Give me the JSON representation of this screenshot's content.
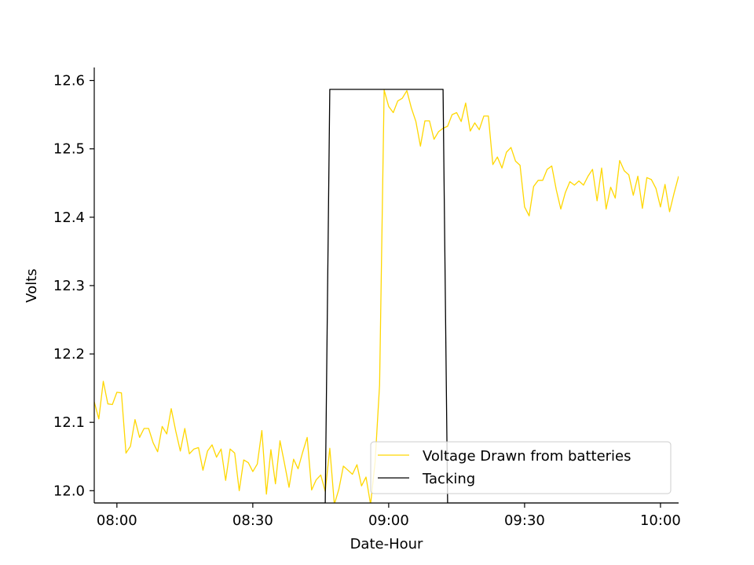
{
  "chart_data": {
    "type": "line",
    "title": "",
    "xlabel": "Date-Hour",
    "ylabel": "Volts",
    "xlim": [
      "07:55",
      "10:04"
    ],
    "ylim": [
      11.982,
      12.619
    ],
    "x_ticks": [
      "08:00",
      "08:30",
      "09:00",
      "09:30",
      "10:00"
    ],
    "y_ticks": [
      "12.0",
      "12.1",
      "12.2",
      "12.3",
      "12.4",
      "12.5",
      "12.6"
    ],
    "grid": false,
    "legend_position": "lower right",
    "series": [
      {
        "name": "Voltage Drawn from batteries",
        "color": "#ffd700",
        "x": [
          "07:55",
          "07:56",
          "07:57",
          "07:58",
          "07:59",
          "08:00",
          "08:01",
          "08:02",
          "08:03",
          "08:04",
          "08:05",
          "08:06",
          "08:07",
          "08:08",
          "08:09",
          "08:10",
          "08:11",
          "08:12",
          "08:13",
          "08:14",
          "08:15",
          "08:16",
          "08:17",
          "08:18",
          "08:19",
          "08:20",
          "08:21",
          "08:22",
          "08:23",
          "08:24",
          "08:25",
          "08:26",
          "08:27",
          "08:28",
          "08:29",
          "08:30",
          "08:31",
          "08:32",
          "08:33",
          "08:34",
          "08:35",
          "08:36",
          "08:37",
          "08:38",
          "08:39",
          "08:40",
          "08:41",
          "08:42",
          "08:43",
          "08:44",
          "08:45",
          "08:46",
          "08:47",
          "08:48",
          "08:49",
          "08:50",
          "08:51",
          "08:52",
          "08:53",
          "08:54",
          "08:55",
          "08:56",
          "08:57",
          "08:58",
          "08:59",
          "09:00",
          "09:01",
          "09:02",
          "09:03",
          "09:04",
          "09:05",
          "09:06",
          "09:07",
          "09:08",
          "09:09",
          "09:10",
          "09:11",
          "09:12",
          "09:13",
          "09:14",
          "09:15",
          "09:16",
          "09:17",
          "09:18",
          "09:19",
          "09:20",
          "09:21",
          "09:22",
          "09:23",
          "09:24",
          "09:25",
          "09:26",
          "09:27",
          "09:28",
          "09:29",
          "09:30",
          "09:31",
          "09:32",
          "09:33",
          "09:34",
          "09:35",
          "09:36",
          "09:37",
          "09:38",
          "09:39",
          "09:40",
          "09:41",
          "09:42",
          "09:43",
          "09:44",
          "09:45",
          "09:46",
          "09:47",
          "09:48",
          "09:49",
          "09:50",
          "09:51",
          "09:52",
          "09:53",
          "09:54",
          "09:55",
          "09:56",
          "09:57",
          "09:58",
          "09:59",
          "10:00",
          "10:01",
          "10:02",
          "10:03",
          "10:04"
        ],
        "y": [
          12.13,
          12.105,
          12.16,
          12.127,
          12.126,
          12.144,
          12.143,
          12.055,
          12.065,
          12.104,
          12.078,
          12.091,
          12.091,
          12.07,
          12.057,
          12.094,
          12.083,
          12.12,
          12.087,
          12.058,
          12.091,
          12.054,
          12.061,
          12.063,
          12.03,
          12.058,
          12.067,
          12.049,
          12.061,
          12.015,
          12.061,
          12.055,
          12.0,
          12.045,
          12.041,
          12.028,
          12.039,
          12.088,
          11.995,
          12.06,
          12.01,
          12.073,
          12.04,
          12.005,
          12.046,
          12.032,
          12.056,
          12.078,
          12.001,
          12.016,
          12.023,
          11.999,
          12.062,
          11.98,
          12.002,
          12.036,
          12.03,
          12.024,
          12.038,
          12.007,
          12.02,
          11.98,
          12.042,
          12.155,
          12.586,
          12.562,
          12.553,
          12.57,
          12.574,
          12.585,
          12.56,
          12.54,
          12.504,
          12.541,
          12.541,
          12.514,
          12.525,
          12.53,
          12.533,
          12.55,
          12.553,
          12.54,
          12.567,
          12.526,
          12.538,
          12.528,
          12.548,
          12.548,
          12.477,
          12.488,
          12.472,
          12.495,
          12.502,
          12.482,
          12.476,
          12.415,
          12.402,
          12.445,
          12.454,
          12.454,
          12.47,
          12.475,
          12.44,
          12.412,
          12.436,
          12.452,
          12.447,
          12.453,
          12.447,
          12.46,
          12.47,
          12.424,
          12.472,
          12.412,
          12.444,
          12.428,
          12.483,
          12.468,
          12.462,
          12.432,
          12.46,
          12.413,
          12.458,
          12.455,
          12.442,
          12.415,
          12.448,
          12.408,
          12.435,
          12.46
        ]
      },
      {
        "name": "Tacking",
        "color": "#000000",
        "x": [
          "07:55",
          "08:46",
          "08:47",
          "09:12",
          "09:13",
          "10:04"
        ],
        "y": [
          11.982,
          11.982,
          12.587,
          12.587,
          11.982,
          11.982
        ]
      }
    ]
  }
}
